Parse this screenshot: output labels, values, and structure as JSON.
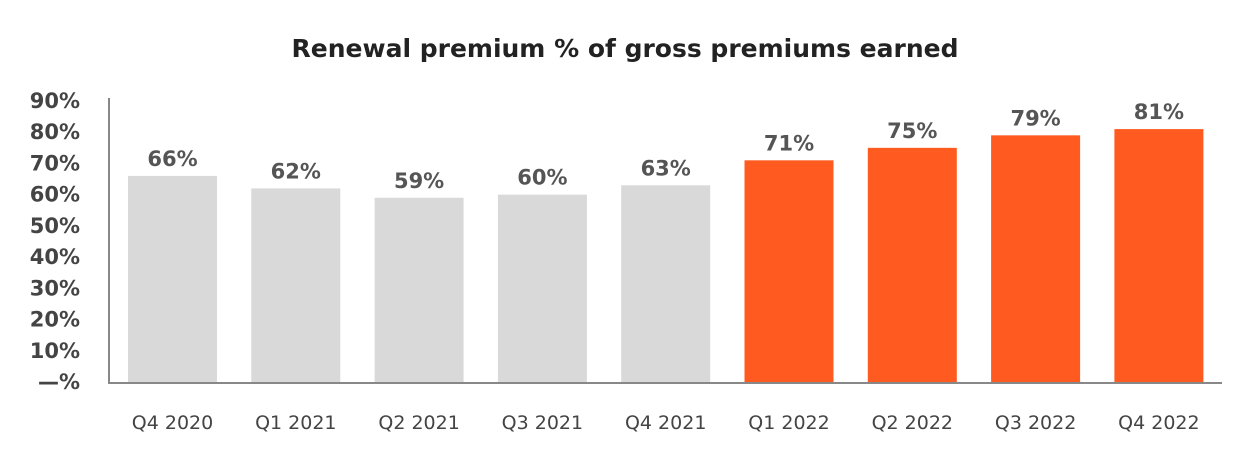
{
  "chart_data": {
    "type": "bar",
    "title": "Renewal premium % of gross premiums earned",
    "xlabel": "",
    "ylabel": "",
    "categories": [
      "Q4 2020",
      "Q1 2021",
      "Q2 2021",
      "Q3 2021",
      "Q4 2021",
      "Q1 2022",
      "Q2 2022",
      "Q3 2022",
      "Q4 2022"
    ],
    "values": [
      66,
      62,
      59,
      60,
      63,
      71,
      75,
      79,
      81
    ],
    "data_labels": [
      "66%",
      "62%",
      "59%",
      "60%",
      "63%",
      "71%",
      "75%",
      "79%",
      "81%"
    ],
    "bar_colors": [
      "#d9d9d9",
      "#d9d9d9",
      "#d9d9d9",
      "#d9d9d9",
      "#d9d9d9",
      "#ff5a1f",
      "#ff5a1f",
      "#ff5a1f",
      "#ff5a1f"
    ],
    "ylim": [
      0,
      90
    ],
    "yticks": [
      0,
      10,
      20,
      30,
      40,
      50,
      60,
      70,
      80,
      90
    ],
    "ytick_labels": [
      "—%",
      "10%",
      "20%",
      "30%",
      "40%",
      "50%",
      "60%",
      "70%",
      "80%",
      "90%"
    ],
    "grid": false,
    "legend": "none"
  }
}
